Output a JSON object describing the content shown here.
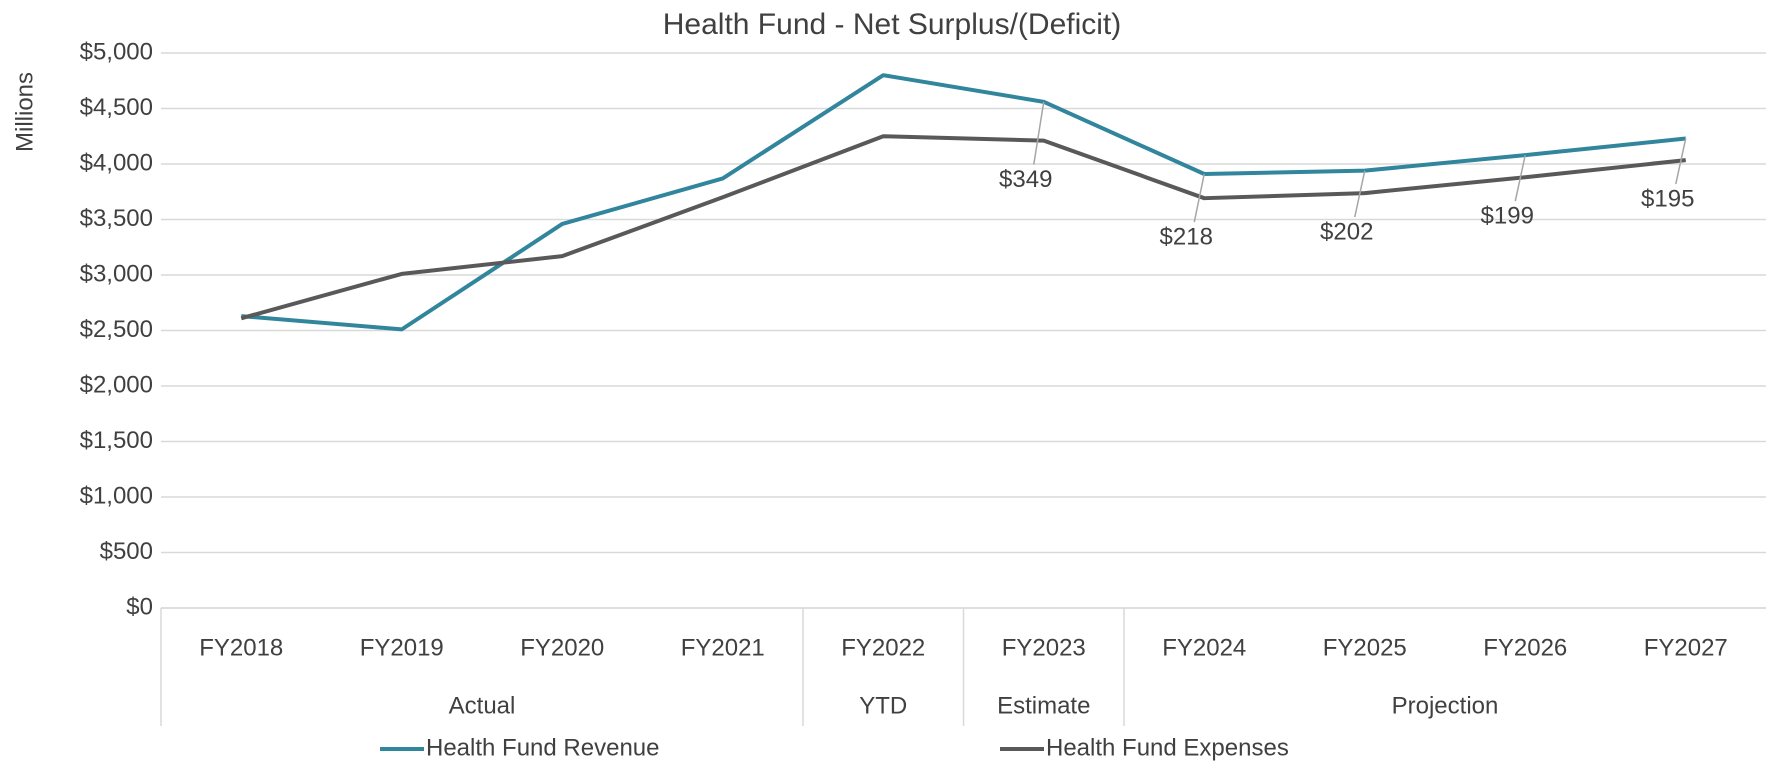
{
  "chart_data": {
    "type": "line",
    "title": "Health Fund - Net Surplus/(Deficit)",
    "y_label": "Millions",
    "categories": [
      "FY2018",
      "FY2019",
      "FY2020",
      "FY2021",
      "FY2022",
      "FY2023",
      "FY2024",
      "FY2025",
      "FY2026",
      "FY2027"
    ],
    "groups": [
      {
        "label": "Actual",
        "count": 4
      },
      {
        "label": "YTD",
        "count": 1
      },
      {
        "label": "Estimate",
        "count": 1
      },
      {
        "label": "Projection",
        "count": 4
      }
    ],
    "series": [
      {
        "name": "Health Fund Revenue",
        "color": "#31859c",
        "values": [
          2630,
          2510,
          3460,
          3870,
          4800,
          4560,
          3910,
          3940,
          4080,
          4230
        ]
      },
      {
        "name": "Health Fund Expenses",
        "color": "#595959",
        "values": [
          2610,
          3010,
          3170,
          3700,
          4250,
          4211,
          3692,
          3738,
          3881,
          4035
        ]
      }
    ],
    "annotations": [
      {
        "text": "$349",
        "category": "FY2023"
      },
      {
        "text": "$218",
        "category": "FY2024"
      },
      {
        "text": "$202",
        "category": "FY2025"
      },
      {
        "text": "$199",
        "category": "FY2026"
      },
      {
        "text": "$195",
        "category": "FY2027"
      }
    ],
    "ylim": [
      0,
      5000
    ],
    "yticks": [
      {
        "value": 0,
        "label": "$0"
      },
      {
        "value": 500,
        "label": "$500"
      },
      {
        "value": 1000,
        "label": "$1,000"
      },
      {
        "value": 1500,
        "label": "$1,500"
      },
      {
        "value": 2000,
        "label": "$2,000"
      },
      {
        "value": 2500,
        "label": "$2,500"
      },
      {
        "value": 3000,
        "label": "$3,000"
      },
      {
        "value": 3500,
        "label": "$3,500"
      },
      {
        "value": 4000,
        "label": "$4,000"
      },
      {
        "value": 4500,
        "label": "$4,500"
      },
      {
        "value": 5000,
        "label": "$5,000"
      }
    ],
    "grid": true,
    "legend": "bottom"
  }
}
